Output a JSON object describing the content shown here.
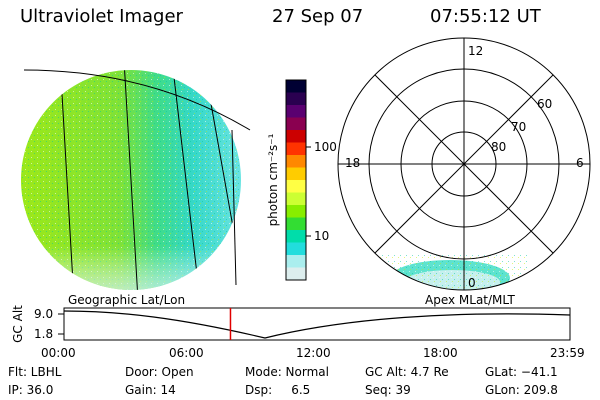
{
  "header": {
    "instrument": "Ultraviolet Imager",
    "date": "27 Sep 07",
    "time": "07:55:12 UT"
  },
  "colorbar": {
    "unit_label": "photon cm⁻²s⁻¹",
    "ticks": [
      "100",
      "10"
    ],
    "colors": [
      "#000033",
      "#2a0050",
      "#5a0070",
      "#8a0050",
      "#cc0000",
      "#ff3300",
      "#ff8800",
      "#ffcc00",
      "#ffff44",
      "#ccff33",
      "#88ee00",
      "#33dd33",
      "#00ddaa",
      "#22dddd",
      "#aaeeee",
      "#ddeeee"
    ]
  },
  "left_map": {
    "label": "Geographic Lat/Lon"
  },
  "right_map": {
    "label": "Apex MLat/MLT",
    "ring_labels": [
      "60",
      "70",
      "80"
    ],
    "mlt_labels": [
      "12",
      "18",
      "6",
      "0"
    ]
  },
  "timeline": {
    "ylabel": "GC Alt",
    "yticks": [
      "9.0",
      "1.8"
    ],
    "xticks": [
      "00:00",
      "06:00",
      "12:00",
      "18:00",
      "23:59"
    ],
    "current_time_fraction": 0.329
  },
  "footer": {
    "flt": "Flt: LBHL",
    "ip": "IP: 36.0",
    "door": "Door: Open",
    "gain": "Gain: 14",
    "mode": "Mode: Normal",
    "dsp": "Dsp:     6.5",
    "gcalt": "GC Alt: 4.7 Re",
    "seq": "Seq: 39",
    "glat": "GLat: −41.1",
    "glon": "GLon: 209.8"
  }
}
